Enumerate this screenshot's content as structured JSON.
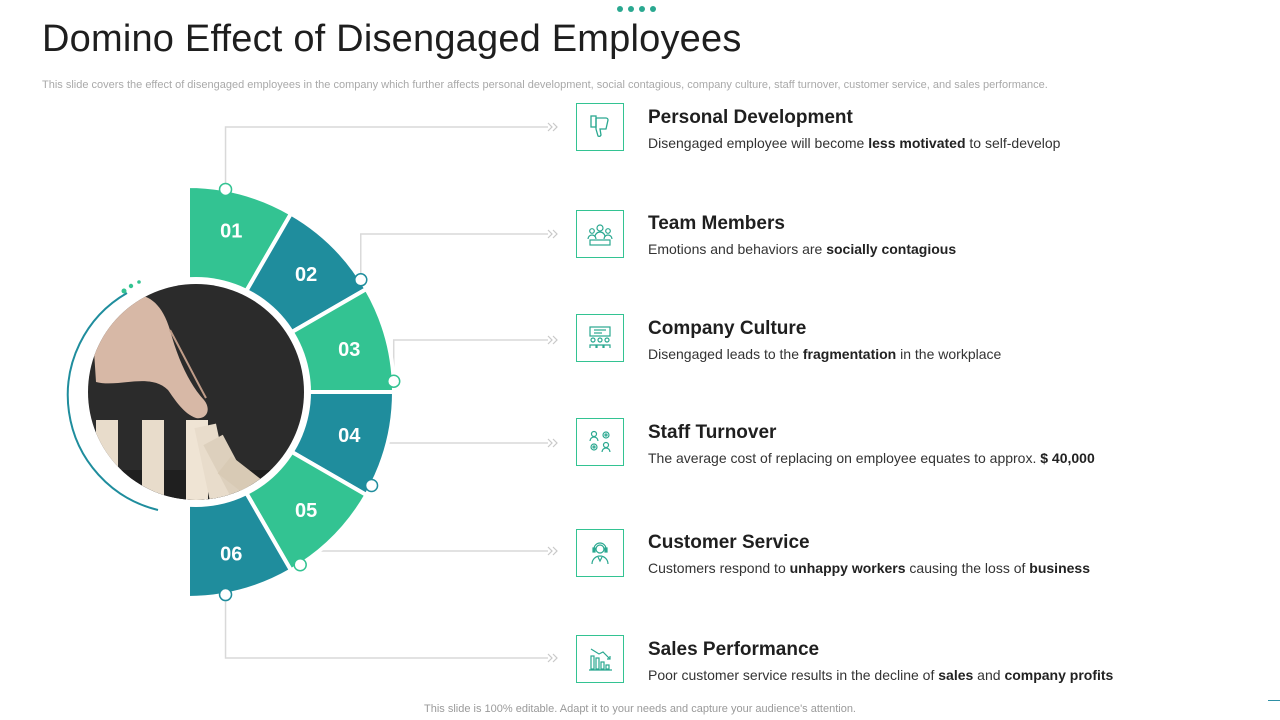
{
  "header": {
    "title": "Domino Effect of Disengaged Employees",
    "subtitle": "This slide covers the effect of disengaged employees in the company which further affects personal development, social contagious, company culture, staff turnover, customer service, and sales performance."
  },
  "colors": {
    "green": "#33c392",
    "teal": "#1f8d9d",
    "line": "#d9d9d9",
    "icon": "#2aa890"
  },
  "segments": [
    "01",
    "02",
    "03",
    "04",
    "05",
    "06"
  ],
  "items": [
    {
      "title": "Personal Development",
      "desc_plain_1": "Disengaged employee will become ",
      "desc_bold_1": "less motivated",
      "desc_plain_2": " to self-develop",
      "desc_bold_2": "",
      "icon": "thumbs-down-icon"
    },
    {
      "title": "Team Members",
      "desc_plain_1": " Emotions and behaviors are ",
      "desc_bold_1": "socially contagious",
      "desc_plain_2": "",
      "desc_bold_2": "",
      "icon": "team-icon"
    },
    {
      "title": "Company Culture",
      "desc_plain_1": " Disengaged leads to the ",
      "desc_bold_1": "fragmentation",
      "desc_plain_2": " in the workplace",
      "desc_bold_2": "",
      "icon": "office-people-icon"
    },
    {
      "title": "Staff Turnover",
      "desc_plain_1": "The average cost of replacing on employee equates to approx. ",
      "desc_bold_1": "$ 40,000",
      "desc_plain_2": "",
      "desc_bold_2": "",
      "icon": "staff-gears-icon"
    },
    {
      "title": "Customer Service",
      "desc_plain_1": "Customers respond to ",
      "desc_bold_1": "unhappy workers",
      "desc_plain_2": " causing the loss of ",
      "desc_bold_2": "business",
      "icon": "headset-agent-icon"
    },
    {
      "title": "Sales Performance",
      "desc_plain_1": "Poor customer service results in the decline of ",
      "desc_bold_1": "sales",
      "desc_plain_2": " and ",
      "desc_bold_2": "company profits",
      "icon": "declining-chart-icon"
    }
  ],
  "footer": "This slide is 100% editable. Adapt it to your needs and capture your audience's attention."
}
